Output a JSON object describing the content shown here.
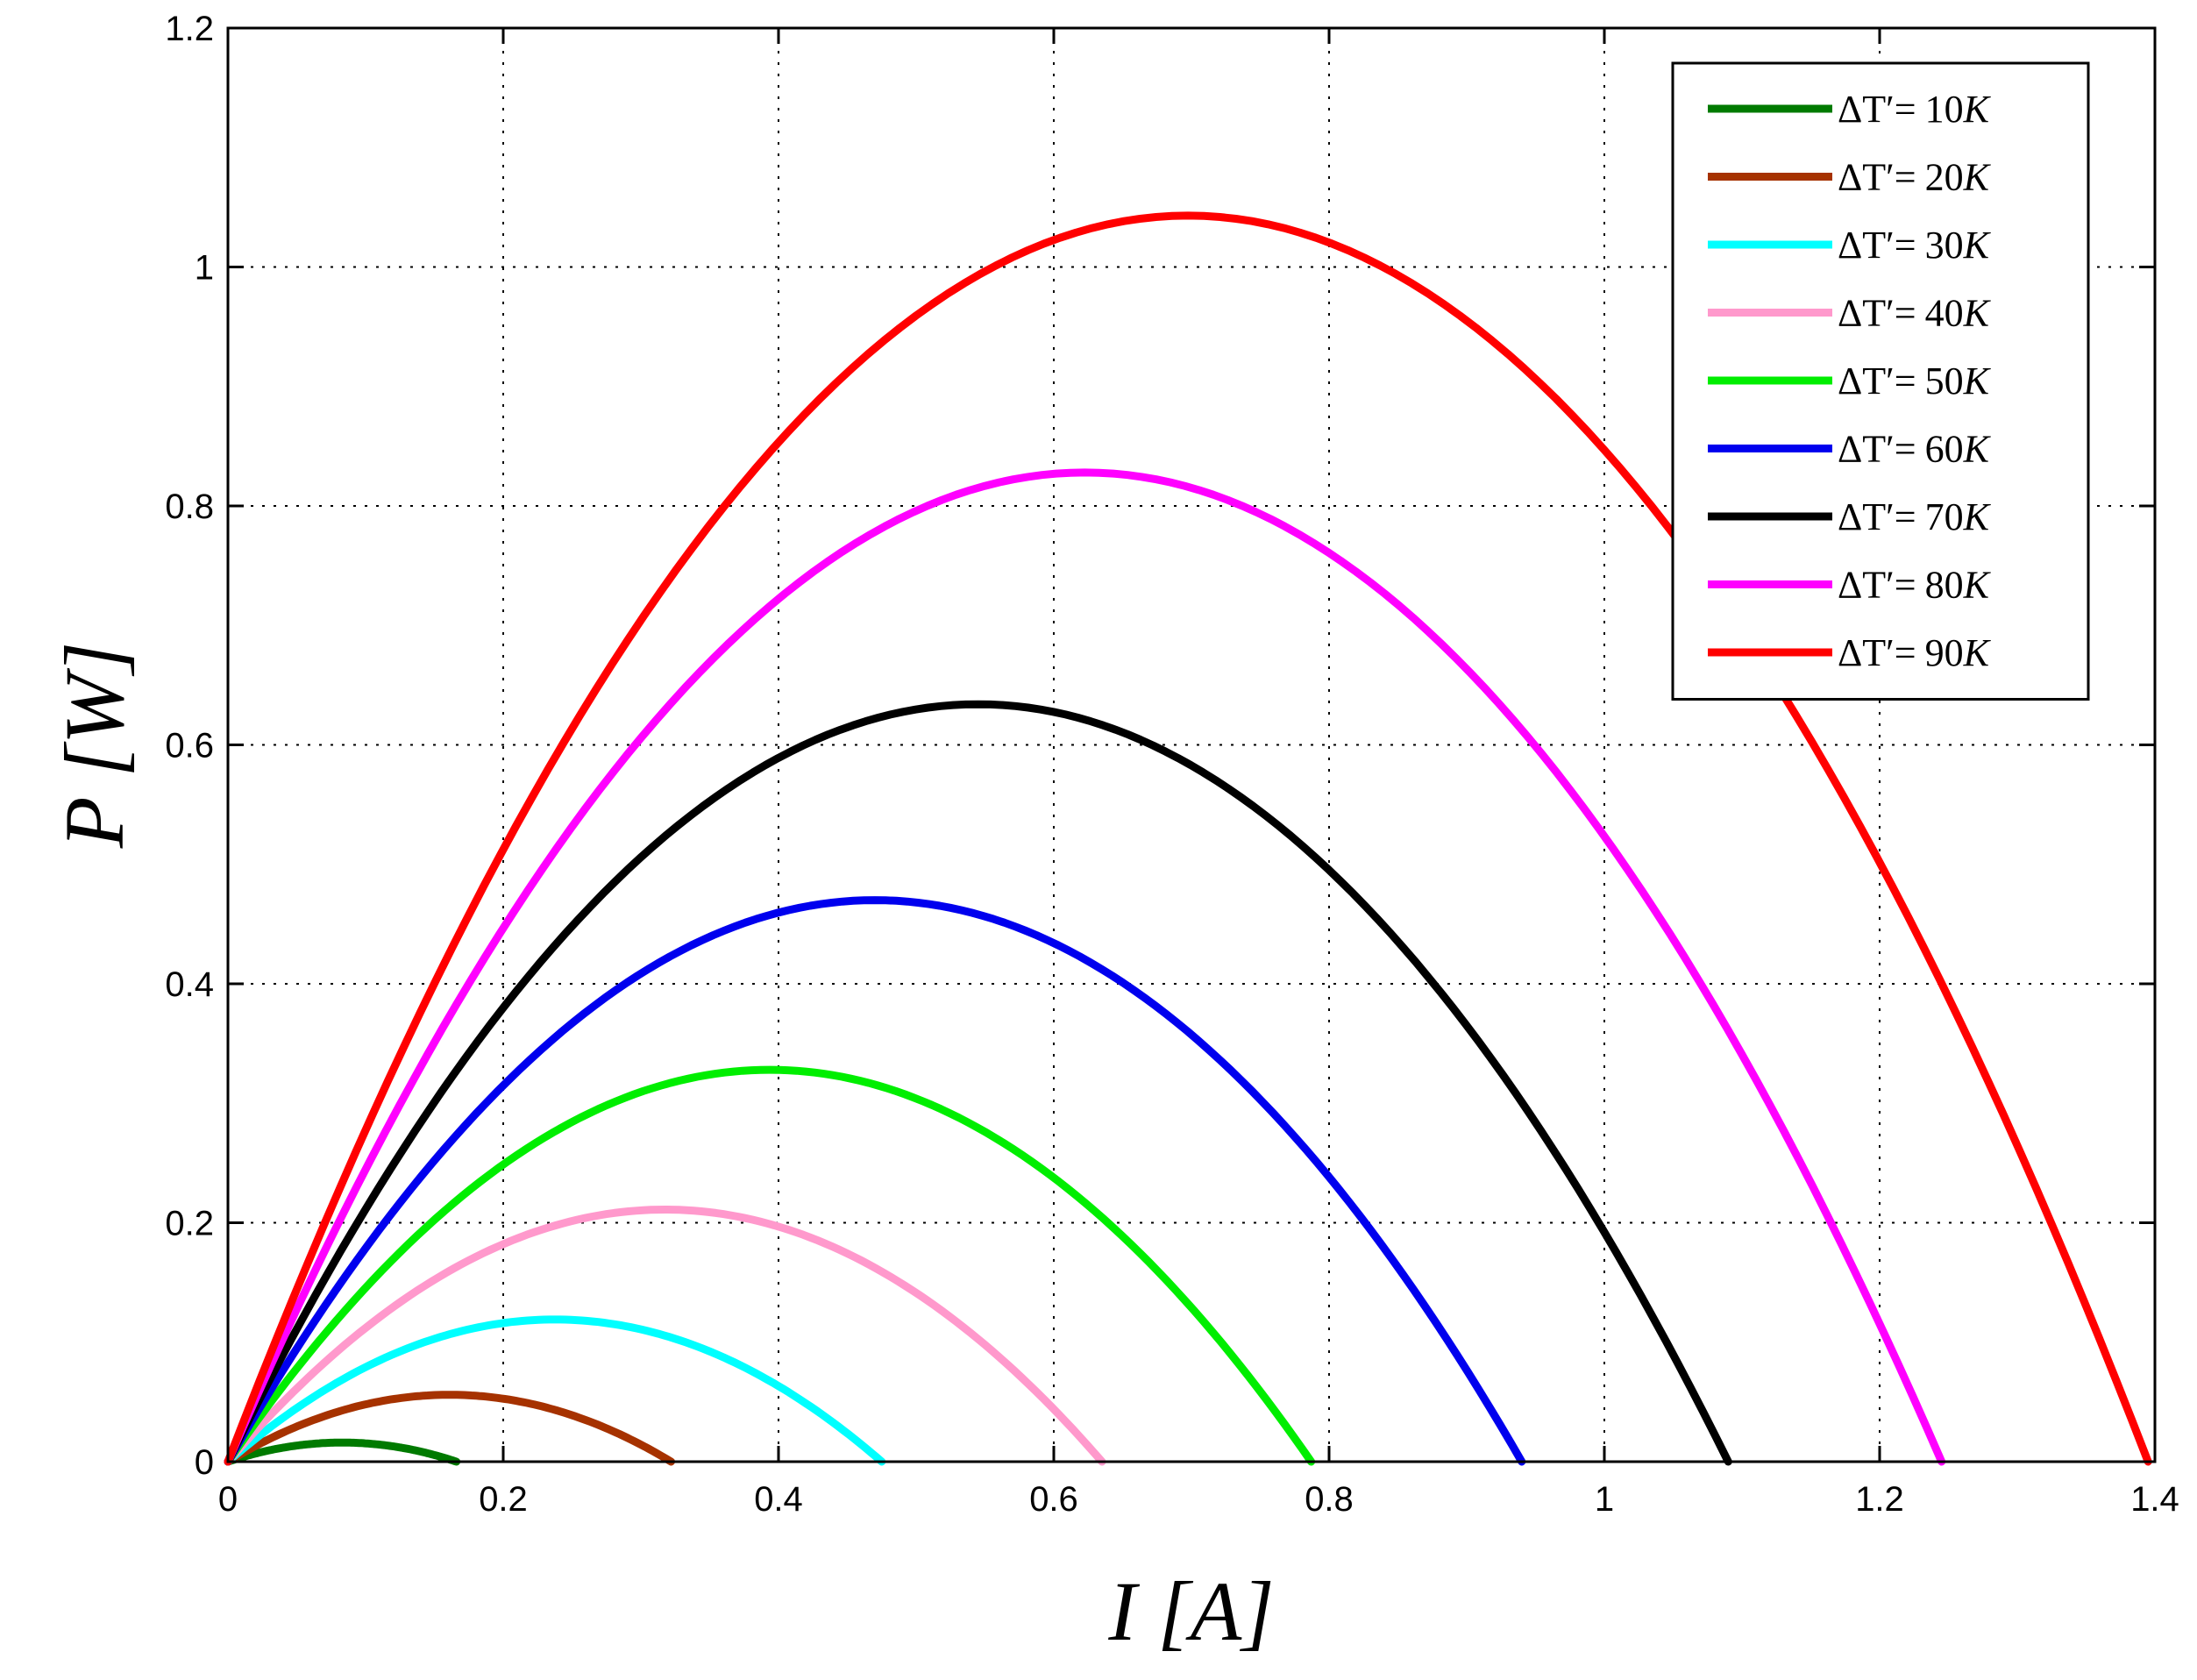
{
  "chart_data": {
    "type": "line",
    "xlabel": "I [A]",
    "ylabel": "P [W]",
    "xlim": [
      0,
      1.4
    ],
    "ylim": [
      0,
      1.2
    ],
    "xticks": [
      "0",
      "0.2",
      "0.4",
      "0.6",
      "0.8",
      "1",
      "1.2",
      "1.4"
    ],
    "yticks": [
      "0",
      "0.2",
      "0.4",
      "0.6",
      "0.8",
      "1",
      "1.2"
    ],
    "grid": true,
    "legend_position": "top-right",
    "series": [
      {
        "name": "ΔT′= 10K",
        "delta_label": "ΔT′=",
        "value_label": "10",
        "unit_label": "K",
        "color": "#007a00",
        "i_max": 0.166,
        "p_max": 0.016
      },
      {
        "name": "ΔT′= 20K",
        "delta_label": "ΔT′=",
        "value_label": "20",
        "unit_label": "K",
        "color": "#a63200",
        "i_max": 0.322,
        "p_max": 0.056
      },
      {
        "name": "ΔT′= 30K",
        "delta_label": "ΔT′=",
        "value_label": "30",
        "unit_label": "K",
        "color": "#00ffff",
        "i_max": 0.475,
        "p_max": 0.119
      },
      {
        "name": "ΔT′= 40K",
        "delta_label": "ΔT′=",
        "value_label": "40",
        "unit_label": "K",
        "color": "#ff99cc",
        "i_max": 0.635,
        "p_max": 0.211
      },
      {
        "name": "ΔT′= 50K",
        "delta_label": "ΔT′=",
        "value_label": "50",
        "unit_label": "K",
        "color": "#00ee00",
        "i_max": 0.787,
        "p_max": 0.328
      },
      {
        "name": "ΔT′= 60K",
        "delta_label": "ΔT′=",
        "value_label": "60",
        "unit_label": "K",
        "color": "#0000ee",
        "i_max": 0.94,
        "p_max": 0.47
      },
      {
        "name": "ΔT′= 70K",
        "delta_label": "ΔT′=",
        "value_label": "70",
        "unit_label": "K",
        "color": "#000000",
        "i_max": 1.09,
        "p_max": 0.634
      },
      {
        "name": "ΔT′= 80K",
        "delta_label": "ΔT′=",
        "value_label": "80",
        "unit_label": "K",
        "color": "#ff00ff",
        "i_max": 1.245,
        "p_max": 0.828
      },
      {
        "name": "ΔT′= 90K",
        "delta_label": "ΔT′=",
        "value_label": "90",
        "unit_label": "K",
        "color": "#ff0000",
        "i_max": 1.395,
        "p_max": 1.043
      }
    ]
  }
}
